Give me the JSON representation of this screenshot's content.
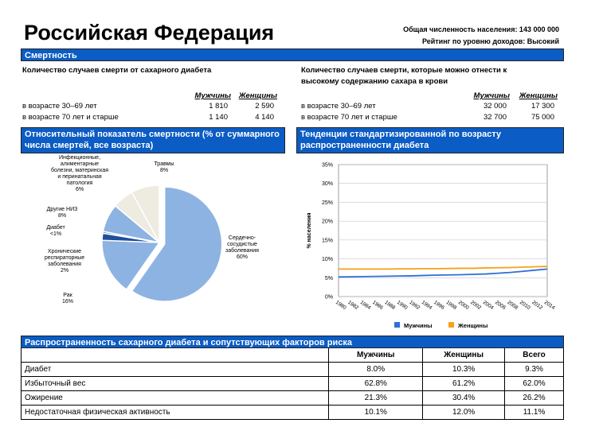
{
  "header": {
    "title": "Российская Федерация",
    "population": "Общая численность населения: 143 000 000",
    "income": "Рейтинг по уровню доходов: Высокий"
  },
  "mortality": {
    "title": "Смертность",
    "diabetes_deaths": {
      "title": "Количество случаев смерти от сахарного диабета",
      "columns": [
        "Мужчины",
        "Женщины"
      ],
      "rows": [
        [
          "в возрасте 30–69 лет",
          "1 810",
          "2 590"
        ],
        [
          "в возрасте 70 лет и старше",
          "1 140",
          "4 140"
        ]
      ]
    },
    "glucose_deaths": {
      "title": "Количество случаев смерти, которые можно отнести к высокому содержанию сахара в крови",
      "columns": [
        "Мужчины",
        "Женщины"
      ],
      "rows": [
        [
          "в возрасте 30–69 лет",
          "32 000",
          "17 300"
        ],
        [
          "в возрасте 70 лет и старше",
          "32 700",
          "75 000"
        ]
      ]
    }
  },
  "chart_data": [
    {
      "type": "pie",
      "title": "Относительный показатель смертности (% от суммарного числа смертей, все возраста)",
      "categories": [
        "Сердечно-сосудистые заболевания",
        "Рак",
        "Хронические респираторные заболевания",
        "Диабет",
        "Другие НИЗ",
        "Инфекционные, алиментарные болезни, материнская и перинатальная патология",
        "Травмы"
      ],
      "values": [
        60,
        16,
        2,
        0.5,
        8,
        6,
        8
      ],
      "value_labels": [
        "60%",
        "16%",
        "2%",
        "<1%",
        "8%",
        "6%",
        "8%"
      ],
      "colors": [
        "#8db3e2",
        "#8db3e2",
        "#1f4e9c",
        "#2e75c6",
        "#8db3e2",
        "#eeece1",
        "#eeece1"
      ]
    },
    {
      "type": "line",
      "title": "Тенденции стандартизированной по возрасту распространенности диабета",
      "ylabel": "% населения",
      "x": [
        1980,
        1982,
        1984,
        1986,
        1988,
        1990,
        1992,
        1994,
        1996,
        1998,
        2000,
        2002,
        2004,
        2006,
        2008,
        2010,
        2012,
        2014
      ],
      "xlim": [
        1980,
        2014
      ],
      "ylim": [
        0,
        35
      ],
      "yticks": [
        {
          "value": 0,
          "label": "0%"
        },
        {
          "value": 5,
          "label": "5%"
        },
        {
          "value": 10,
          "label": "10%"
        },
        {
          "value": 15,
          "label": "15%"
        },
        {
          "value": 20,
          "label": "20%"
        },
        {
          "value": 25,
          "label": "25%"
        },
        {
          "value": 30,
          "label": "30%"
        },
        {
          "value": 35,
          "label": "35%"
        }
      ],
      "grid": true,
      "series": [
        {
          "name": "Мужчины",
          "color": "#2e6fd8",
          "values": [
            5.2,
            5.25,
            5.3,
            5.35,
            5.4,
            5.45,
            5.5,
            5.6,
            5.7,
            5.75,
            5.8,
            5.9,
            6.0,
            6.2,
            6.4,
            6.7,
            7.0,
            7.3
          ]
        },
        {
          "name": "Женщины",
          "color": "#f5a21b",
          "values": [
            7.3,
            7.3,
            7.3,
            7.3,
            7.3,
            7.35,
            7.35,
            7.4,
            7.4,
            7.45,
            7.5,
            7.5,
            7.6,
            7.65,
            7.7,
            7.8,
            7.9,
            8.0
          ]
        }
      ]
    }
  ],
  "risk_table": {
    "title": "Распространенность сахарного диабета и сопутствующих факторов риска",
    "columns": [
      "Мужчины",
      "Женщины",
      "Всего"
    ],
    "rows": [
      [
        "Диабет",
        "8.0%",
        "10.3%",
        "9.3%"
      ],
      [
        "Избыточный вес",
        "62.8%",
        "61.2%",
        "62.0%"
      ],
      [
        "Ожирение",
        "21.3%",
        "30.4%",
        "26.2%"
      ],
      [
        "Недостаточная физическая активность",
        "10.1%",
        "12.0%",
        "11.1%"
      ]
    ]
  }
}
